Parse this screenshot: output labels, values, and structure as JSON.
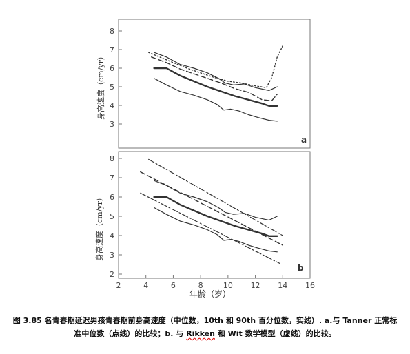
{
  "chart_data": [
    {
      "type": "line",
      "panel_label": "a",
      "ylabel": "身高速度（cm/yr）",
      "xlabel": "",
      "xlim": [
        2,
        16
      ],
      "ylim": [
        2,
        8
      ],
      "yticks": [
        "3",
        "4",
        "5",
        "6",
        "7",
        "8"
      ],
      "xticks": [],
      "series": [
        {
          "style": "solid-thick",
          "x": [
            4.6,
            5.5,
            6.5,
            7.5,
            8.5,
            9.5,
            10.5,
            11.5,
            12.5,
            13.0,
            13.6
          ],
          "y": [
            6.0,
            6.0,
            5.6,
            5.3,
            5.0,
            4.75,
            4.5,
            4.3,
            4.1,
            3.97,
            3.97
          ]
        },
        {
          "style": "solid-thin",
          "x": [
            4.6,
            5.5,
            6.5,
            7.5,
            8.5,
            9.3,
            9.8,
            10.4,
            11.2,
            12.0,
            13.0,
            13.6
          ],
          "y": [
            6.85,
            6.6,
            6.2,
            6.0,
            5.75,
            5.45,
            5.2,
            5.1,
            5.15,
            4.95,
            4.8,
            5.0
          ]
        },
        {
          "style": "solid-thin",
          "x": [
            4.6,
            5.5,
            6.5,
            7.5,
            8.5,
            9.2,
            9.7,
            10.2,
            10.8,
            11.5,
            12.2,
            13.0,
            13.6
          ],
          "y": [
            5.45,
            5.1,
            4.75,
            4.55,
            4.3,
            4.05,
            3.75,
            3.8,
            3.7,
            3.5,
            3.35,
            3.2,
            3.15
          ]
        },
        {
          "style": "dashed",
          "x": [
            4.4,
            5.5,
            6.5,
            7.5,
            8.5,
            9.5,
            10.5,
            11.5,
            12.5,
            13.2,
            13.6
          ],
          "y": [
            6.6,
            6.3,
            5.95,
            5.7,
            5.45,
            5.2,
            4.9,
            4.7,
            4.3,
            4.25,
            4.6
          ]
        },
        {
          "style": "dotted",
          "x": [
            4.2,
            5.0,
            6.0,
            7.0,
            8.0,
            9.0,
            10.0,
            11.0,
            12.0,
            12.8,
            13.2,
            13.6,
            14.0
          ],
          "y": [
            6.85,
            6.6,
            6.3,
            6.0,
            5.75,
            5.5,
            5.3,
            5.2,
            5.05,
            4.95,
            5.5,
            6.6,
            7.2
          ]
        }
      ]
    },
    {
      "type": "line",
      "panel_label": "b",
      "ylabel": "身高速度（cm/yr）",
      "xlabel": "年龄（岁）",
      "xlim": [
        2,
        16
      ],
      "ylim": [
        2,
        8
      ],
      "yticks": [
        "2",
        "3",
        "4",
        "5",
        "6",
        "7",
        "8"
      ],
      "xticks": [
        "2",
        "4",
        "6",
        "8",
        "10",
        "12",
        "14",
        "16"
      ],
      "series": [
        {
          "style": "solid-thick",
          "x": [
            4.6,
            5.5,
            6.5,
            7.5,
            8.5,
            9.5,
            10.5,
            11.5,
            12.5,
            13.0,
            13.6
          ],
          "y": [
            6.0,
            6.0,
            5.6,
            5.3,
            5.0,
            4.75,
            4.5,
            4.3,
            4.1,
            3.97,
            3.97
          ]
        },
        {
          "style": "solid-thin",
          "x": [
            4.6,
            5.5,
            6.5,
            7.5,
            8.5,
            9.3,
            9.8,
            10.4,
            11.2,
            12.0,
            13.0,
            13.6
          ],
          "y": [
            6.85,
            6.6,
            6.2,
            6.0,
            5.75,
            5.45,
            5.2,
            5.1,
            5.15,
            4.95,
            4.8,
            5.0
          ]
        },
        {
          "style": "solid-thin",
          "x": [
            4.6,
            5.5,
            6.5,
            7.5,
            8.5,
            9.2,
            9.7,
            10.2,
            10.8,
            11.5,
            12.2,
            13.0,
            13.6
          ],
          "y": [
            5.45,
            5.1,
            4.75,
            4.55,
            4.3,
            4.05,
            3.75,
            3.8,
            3.7,
            3.5,
            3.35,
            3.2,
            3.15
          ]
        },
        {
          "style": "dashed",
          "x": [
            3.6,
            14.0
          ],
          "y": [
            7.3,
            3.5
          ]
        },
        {
          "style": "dashdot",
          "x": [
            4.2,
            14.0
          ],
          "y": [
            7.95,
            4.0
          ]
        },
        {
          "style": "dashdot",
          "x": [
            3.6,
            13.8
          ],
          "y": [
            6.2,
            2.55
          ]
        }
      ]
    }
  ],
  "caption": {
    "part1": "图 3.85 名青春期延迟男孩青春期前身高速度（中位数，10th 和 90th 百分位数，实线）. a.与 Tanner 正常标准中位数（点线）的比较；b. 与 ",
    "underlined": "Rikken",
    "part2": " 和 Wit 数学模型（虚线）的比较。"
  }
}
